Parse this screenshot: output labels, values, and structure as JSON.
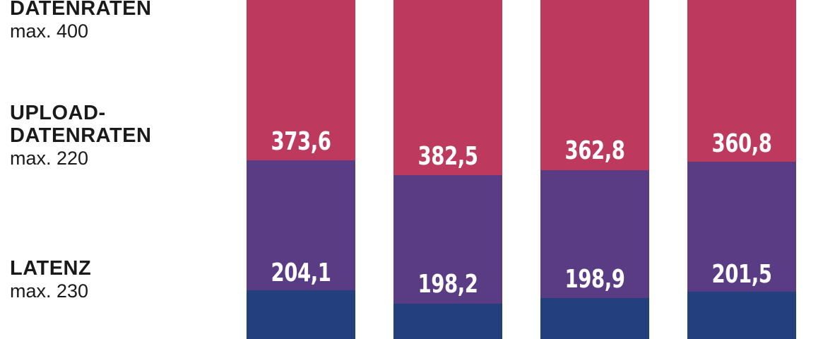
{
  "legend": [
    {
      "title": [
        "DATENRATEN"
      ],
      "max": "max. 400"
    },
    {
      "title": [
        "UPLOAD-",
        "DATENRATEN"
      ],
      "max": "max. 220"
    },
    {
      "title": [
        "LATENZ"
      ],
      "max": "max. 230"
    }
  ],
  "bars": [
    {
      "upper_label": "373,6",
      "lower_label": "204,1"
    },
    {
      "upper_label": "382,5",
      "lower_label": "198,2"
    },
    {
      "upper_label": "362,8",
      "lower_label": "198,9"
    },
    {
      "upper_label": "360,8",
      "lower_label": "201,5"
    }
  ]
}
